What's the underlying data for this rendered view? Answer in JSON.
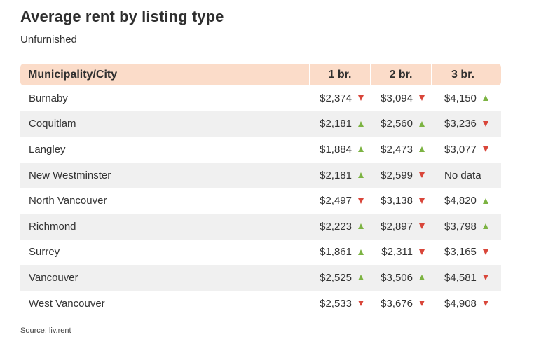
{
  "title": "Average rent by listing type",
  "subtitle": "Unfurnished",
  "colors": {
    "header_bg": "#fbdcc9",
    "up": "#7cb342",
    "down": "#d9463a",
    "alt_row": "#f0f0f0"
  },
  "table": {
    "headers": [
      "Municipality/City",
      "1 br.",
      "2 br.",
      "3 br."
    ],
    "rows": [
      {
        "city": "Burnaby",
        "c1": "$2,374",
        "t1": "down",
        "c2": "$3,094",
        "t2": "down",
        "c3": "$4,150",
        "t3": "up"
      },
      {
        "city": "Coquitlam",
        "c1": "$2,181",
        "t1": "up",
        "c2": "$2,560",
        "t2": "up",
        "c3": "$3,236",
        "t3": "down"
      },
      {
        "city": "Langley",
        "c1": "$1,884",
        "t1": "up",
        "c2": "$2,473",
        "t2": "up",
        "c3": "$3,077",
        "t3": "down"
      },
      {
        "city": "New Westminster",
        "c1": "$2,181",
        "t1": "up",
        "c2": "$2,599",
        "t2": "down",
        "c3": "No data",
        "t3": ""
      },
      {
        "city": "North Vancouver",
        "c1": "$2,497",
        "t1": "down",
        "c2": "$3,138",
        "t2": "down",
        "c3": "$4,820",
        "t3": "up"
      },
      {
        "city": "Richmond",
        "c1": "$2,223",
        "t1": "up",
        "c2": "$2,897",
        "t2": "down",
        "c3": "$3,798",
        "t3": "up"
      },
      {
        "city": "Surrey",
        "c1": "$1,861",
        "t1": "up",
        "c2": "$2,311",
        "t2": "down",
        "c3": "$3,165",
        "t3": "down"
      },
      {
        "city": "Vancouver",
        "c1": "$2,525",
        "t1": "up",
        "c2": "$3,506",
        "t2": "up",
        "c3": "$4,581",
        "t3": "down"
      },
      {
        "city": "West Vancouver",
        "c1": "$2,533",
        "t1": "down",
        "c2": "$3,676",
        "t2": "down",
        "c3": "$4,908",
        "t3": "down"
      }
    ]
  },
  "source": "Source: liv.rent"
}
